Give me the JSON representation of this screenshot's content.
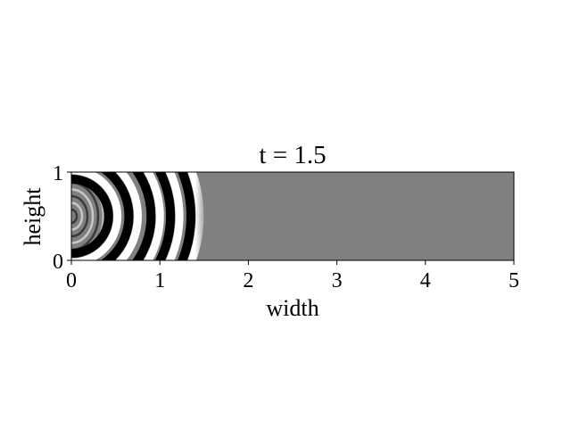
{
  "chart_data": {
    "type": "heatmap",
    "title": "t = 1.5",
    "xlabel": "width",
    "ylabel": "height",
    "xlim": [
      0,
      5
    ],
    "ylim": [
      0,
      1
    ],
    "xticks": [
      0,
      1,
      2,
      3,
      4,
      5
    ],
    "yticks": [
      0,
      1
    ],
    "xtick_labels": [
      "0",
      "1",
      "2",
      "3",
      "4",
      "5"
    ],
    "ytick_labels": [
      "0",
      "1"
    ],
    "colormap": "gray",
    "background_value_color": "#808080",
    "wavefront_x": 1.5,
    "source_position": [
      0,
      0.5
    ],
    "wave_rings_radii": [
      0.42,
      0.65,
      0.9,
      1.12,
      1.35
    ],
    "grid": false,
    "legend": "none"
  }
}
